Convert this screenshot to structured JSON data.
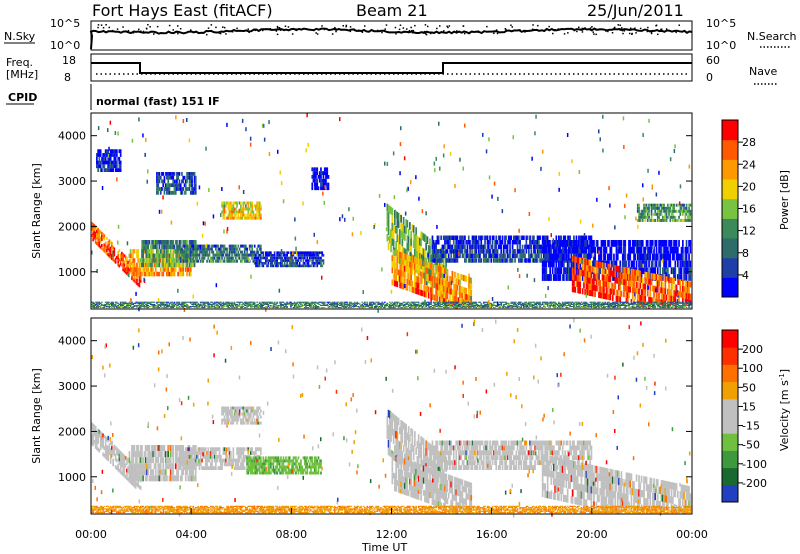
{
  "header": {
    "radar": "Fort Hays East (fitACF)",
    "beam": "Beam 21",
    "date": "25/Jun/2011"
  },
  "top_panels": {
    "nsky_label": "N.Sky",
    "nsky_ticks": [
      "10^5",
      "10^0"
    ],
    "nsearch_label": "N.Search",
    "nsearch_ticks": [
      "10^5",
      "10^0"
    ],
    "freq_label_1": "Freq.",
    "freq_label_2": "[MHz]",
    "freq_ticks": [
      "18",
      "8"
    ],
    "nave_label": "Nave",
    "nave_ticks": [
      "60",
      "0"
    ],
    "cpid_label": "CPID",
    "cpid_text": "normal (fast) 151 IF"
  },
  "colors": {
    "power_bar": [
      "#0000ff",
      "#1f3fa8",
      "#2e6b6b",
      "#3a8a5a",
      "#78c440",
      "#f0d000",
      "#ff9900",
      "#ff5a00",
      "#ff0000"
    ],
    "velocity_bar": [
      "#2040c0",
      "#1a6a30",
      "#3c9a3c",
      "#70c040",
      "#c0c0c0",
      "#c0c0c0",
      "#f0a000",
      "#ff7000",
      "#ff3000",
      "#ff0000"
    ],
    "scatter_gray": "#c0c0c0"
  },
  "chart_data": [
    {
      "type": "heatmap",
      "name": "power",
      "ylabel": "Slant Range [km]",
      "xlabel": "",
      "xlim": [
        0,
        24
      ],
      "ylim": [
        180,
        4500
      ],
      "y_ticks": [
        "1000",
        "2000",
        "3000",
        "4000"
      ],
      "colorbar_label": "Power [dB]",
      "colorbar_ticks": [
        "28",
        "24",
        "20",
        "16",
        "12",
        "8",
        "4"
      ],
      "features": [
        {
          "t0": 0.0,
          "t1": 2.0,
          "r0": 1700,
          "r1": 2100,
          "level": 0.9,
          "slope": -550
        },
        {
          "t0": 1.5,
          "t1": 4.0,
          "r0": 900,
          "r1": 1500,
          "level": 0.75,
          "slope": 0
        },
        {
          "t0": 2.0,
          "t1": 4.2,
          "r0": 1100,
          "r1": 1700,
          "level": 0.45,
          "slope": 0
        },
        {
          "t0": 3.5,
          "t1": 6.8,
          "r0": 1200,
          "r1": 1600,
          "level": 0.35,
          "slope": 0
        },
        {
          "t0": 6.5,
          "t1": 9.3,
          "r0": 1100,
          "r1": 1450,
          "level": 0.2,
          "slope": 0
        },
        {
          "t0": 5.2,
          "t1": 6.8,
          "r0": 2150,
          "r1": 2550,
          "level": 0.7,
          "slope": 0
        },
        {
          "t0": 2.6,
          "t1": 4.2,
          "r0": 2700,
          "r1": 3200,
          "level": 0.25,
          "slope": 0
        },
        {
          "t0": 0.2,
          "t1": 1.2,
          "r0": 3200,
          "r1": 3700,
          "level": 0.15,
          "slope": 0
        },
        {
          "t0": 8.8,
          "t1": 9.5,
          "r0": 2800,
          "r1": 3300,
          "level": 0.1,
          "slope": 0
        },
        {
          "t0": 11.8,
          "t1": 14.2,
          "r0": 1500,
          "r1": 2500,
          "level": 0.55,
          "slope": -450
        },
        {
          "t0": 12.0,
          "t1": 15.2,
          "r0": 700,
          "r1": 1500,
          "level": 0.8,
          "slope": -200
        },
        {
          "t0": 13.6,
          "t1": 20.0,
          "r0": 1200,
          "r1": 1800,
          "level": 0.2,
          "slope": 0
        },
        {
          "t0": 18.0,
          "t1": 24.0,
          "r0": 800,
          "r1": 1700,
          "level": 0.1,
          "slope": 0
        },
        {
          "t0": 19.2,
          "t1": 24.0,
          "r0": 550,
          "r1": 1350,
          "level": 0.92,
          "slope": -120
        },
        {
          "t0": 21.8,
          "t1": 24.0,
          "r0": 2100,
          "r1": 2500,
          "level": 0.45,
          "slope": 0
        },
        {
          "t0": 0.0,
          "t1": 24.0,
          "r0": 200,
          "r1": 340,
          "level": 0.4,
          "slope": 0
        }
      ]
    },
    {
      "type": "heatmap",
      "name": "velocity",
      "ylabel": "Slant Range [km]",
      "xlabel": "Time UT",
      "xlim": [
        0,
        24
      ],
      "ylim": [
        180,
        4500
      ],
      "x_ticks": [
        "00:00",
        "04:00",
        "08:00",
        "12:00",
        "16:00",
        "20:00",
        "00:00"
      ],
      "y_ticks": [
        "1000",
        "2000",
        "3000",
        "4000"
      ],
      "colorbar_label": "Velocity [m s",
      "colorbar_ticks": [
        "200",
        "100",
        "50",
        "15",
        "-15",
        "-50",
        "-100",
        "-200"
      ],
      "features": [
        {
          "t0": 0.0,
          "t1": 2.0,
          "r0": 1700,
          "r1": 2200,
          "level": 0.5,
          "slope": -550
        },
        {
          "t0": 1.5,
          "t1": 4.2,
          "r0": 900,
          "r1": 1700,
          "level": 0.5,
          "slope": 0
        },
        {
          "t0": 3.5,
          "t1": 6.8,
          "r0": 1150,
          "r1": 1650,
          "level": 0.5,
          "slope": 0
        },
        {
          "t0": 6.2,
          "t1": 9.2,
          "r0": 1050,
          "r1": 1450,
          "level": 0.7,
          "slope": 0
        },
        {
          "t0": 5.2,
          "t1": 6.8,
          "r0": 2150,
          "r1": 2550,
          "level": 0.5,
          "slope": 0
        },
        {
          "t0": 11.8,
          "t1": 14.2,
          "r0": 1500,
          "r1": 2500,
          "level": 0.5,
          "slope": -450
        },
        {
          "t0": 12.0,
          "t1": 15.2,
          "r0": 700,
          "r1": 1500,
          "level": 0.5,
          "slope": -200
        },
        {
          "t0": 13.6,
          "t1": 20.0,
          "r0": 1150,
          "r1": 1800,
          "level": 0.5,
          "slope": 0
        },
        {
          "t0": 18.0,
          "t1": 24.0,
          "r0": 550,
          "r1": 1500,
          "level": 0.5,
          "slope": -120
        },
        {
          "t0": 0.0,
          "t1": 24.0,
          "r0": 200,
          "r1": 360,
          "level": 0.18,
          "slope": 0
        }
      ]
    }
  ]
}
